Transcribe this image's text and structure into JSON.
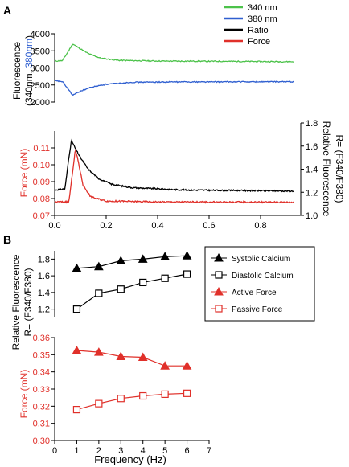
{
  "panel_labels": [
    "A",
    "B"
  ],
  "legend_a": [
    {
      "label": "340 nm",
      "color": "#4cc24a"
    },
    {
      "label": "380 nm",
      "color": "#2f5fd0"
    },
    {
      "label": "Ratio",
      "color": "#000000"
    },
    {
      "label": "Force",
      "color": "#e0302a"
    }
  ],
  "legend_b": [
    {
      "label": "Systolic Calcium",
      "marker": "triangle-filled",
      "color": "#000000"
    },
    {
      "label": "Diastolic Calcium",
      "marker": "square-open",
      "color": "#000000"
    },
    {
      "label": "Active Force",
      "marker": "triangle-filled",
      "color": "#e0302a"
    },
    {
      "label": "Passive Force",
      "marker": "square-open",
      "color": "#e0302a"
    }
  ],
  "chart_data": [
    {
      "type": "line",
      "panel": "A-top",
      "ylabel": {
        "part1": "Fluorescence",
        "part2a": "(340nm, ",
        "part2b": "380nm",
        "part2c": ")"
      },
      "ylim": [
        2000,
        4000
      ],
      "yticks": [
        2000,
        2500,
        3000,
        3500,
        4000
      ],
      "xlim": [
        0,
        0.95
      ],
      "series": [
        {
          "name": "340 nm",
          "color": "#4cc24a",
          "baseline": 3180,
          "points": [
            [
              0.0,
              3200
            ],
            [
              0.03,
              3210
            ],
            [
              0.05,
              3450
            ],
            [
              0.07,
              3700
            ],
            [
              0.1,
              3560
            ],
            [
              0.13,
              3420
            ],
            [
              0.18,
              3280
            ],
            [
              0.25,
              3220
            ],
            [
              0.4,
              3200
            ],
            [
              0.7,
              3190
            ],
            [
              0.93,
              3180
            ]
          ]
        },
        {
          "name": "380 nm",
          "color": "#2f5fd0",
          "baseline": 2590,
          "points": [
            [
              0.0,
              2620
            ],
            [
              0.03,
              2600
            ],
            [
              0.05,
              2400
            ],
            [
              0.07,
              2200
            ],
            [
              0.1,
              2320
            ],
            [
              0.14,
              2430
            ],
            [
              0.2,
              2520
            ],
            [
              0.3,
              2580
            ],
            [
              0.5,
              2590
            ],
            [
              0.93,
              2595
            ]
          ]
        }
      ]
    },
    {
      "type": "line",
      "panel": "A-bottom",
      "xlabel": "",
      "xlim": [
        0,
        0.95
      ],
      "xticks": [
        "0.0",
        "0.2",
        "0.4",
        "0.6",
        "0.8"
      ],
      "left_axis": {
        "label": "Force (mN)",
        "ylim": [
          0.07,
          0.12
        ],
        "ticks": [
          "0.07",
          "0.08",
          "0.09",
          "0.10",
          "0.11"
        ]
      },
      "right_axis": {
        "label_line1": "Relative Fluorescence",
        "label_line2": "R= (F340/F380)",
        "ylim": [
          1.0,
          1.8
        ],
        "ticks": [
          "1.0",
          "1.2",
          "1.4",
          "1.6",
          "1.8"
        ]
      },
      "series": [
        {
          "name": "Ratio",
          "color": "#000000",
          "axis": "right",
          "points": [
            [
              0.0,
              1.22
            ],
            [
              0.04,
              1.23
            ],
            [
              0.055,
              1.5
            ],
            [
              0.065,
              1.65
            ],
            [
              0.08,
              1.58
            ],
            [
              0.1,
              1.5
            ],
            [
              0.13,
              1.4
            ],
            [
              0.17,
              1.32
            ],
            [
              0.22,
              1.27
            ],
            [
              0.3,
              1.24
            ],
            [
              0.5,
              1.22
            ],
            [
              0.93,
              1.21
            ]
          ]
        },
        {
          "name": "Force",
          "color": "#e0302a",
          "axis": "left",
          "points": [
            [
              0.0,
              0.078
            ],
            [
              0.055,
              0.078
            ],
            [
              0.065,
              0.09
            ],
            [
              0.08,
              0.109
            ],
            [
              0.09,
              0.103
            ],
            [
              0.11,
              0.088
            ],
            [
              0.14,
              0.081
            ],
            [
              0.2,
              0.0785
            ],
            [
              0.4,
              0.078
            ],
            [
              0.93,
              0.0778
            ]
          ]
        }
      ]
    },
    {
      "type": "line",
      "panel": "B-top",
      "ylabel": {
        "line1": "Relative Fluorescence",
        "line2": "R= (F340/F380)"
      },
      "ylim": [
        1.1,
        1.9
      ],
      "yticks": [
        "1.2",
        "1.4",
        "1.6",
        "1.8"
      ],
      "x": [
        1,
        2,
        3,
        4,
        5,
        6
      ],
      "series": [
        {
          "name": "Systolic Calcium",
          "marker": "triangle-filled",
          "color": "#000000",
          "values": [
            1.69,
            1.71,
            1.78,
            1.8,
            1.83,
            1.84
          ]
        },
        {
          "name": "Diastolic Calcium",
          "marker": "square-open",
          "color": "#000000",
          "values": [
            1.2,
            1.39,
            1.44,
            1.52,
            1.57,
            1.62
          ]
        }
      ]
    },
    {
      "type": "line",
      "panel": "B-bottom",
      "ylabel": "Force (mN)",
      "xlabel": "Frequency (Hz)",
      "xlim": [
        0,
        7
      ],
      "xticks": [
        "0",
        "1",
        "2",
        "3",
        "4",
        "5",
        "6",
        "7"
      ],
      "ylim": [
        0.3,
        0.36
      ],
      "yticks": [
        "0.30",
        "0.31",
        "0.32",
        "0.33",
        "0.34",
        "0.35",
        "0.36"
      ],
      "x": [
        1,
        2,
        3,
        4,
        5,
        6
      ],
      "series": [
        {
          "name": "Active Force",
          "marker": "triangle-filled",
          "color": "#e0302a",
          "values": [
            0.3525,
            0.3515,
            0.349,
            0.3485,
            0.3435,
            0.3435
          ]
        },
        {
          "name": "Passive Force",
          "marker": "square-open",
          "color": "#e0302a",
          "values": [
            0.318,
            0.3215,
            0.3245,
            0.326,
            0.327,
            0.3275
          ]
        }
      ]
    }
  ]
}
